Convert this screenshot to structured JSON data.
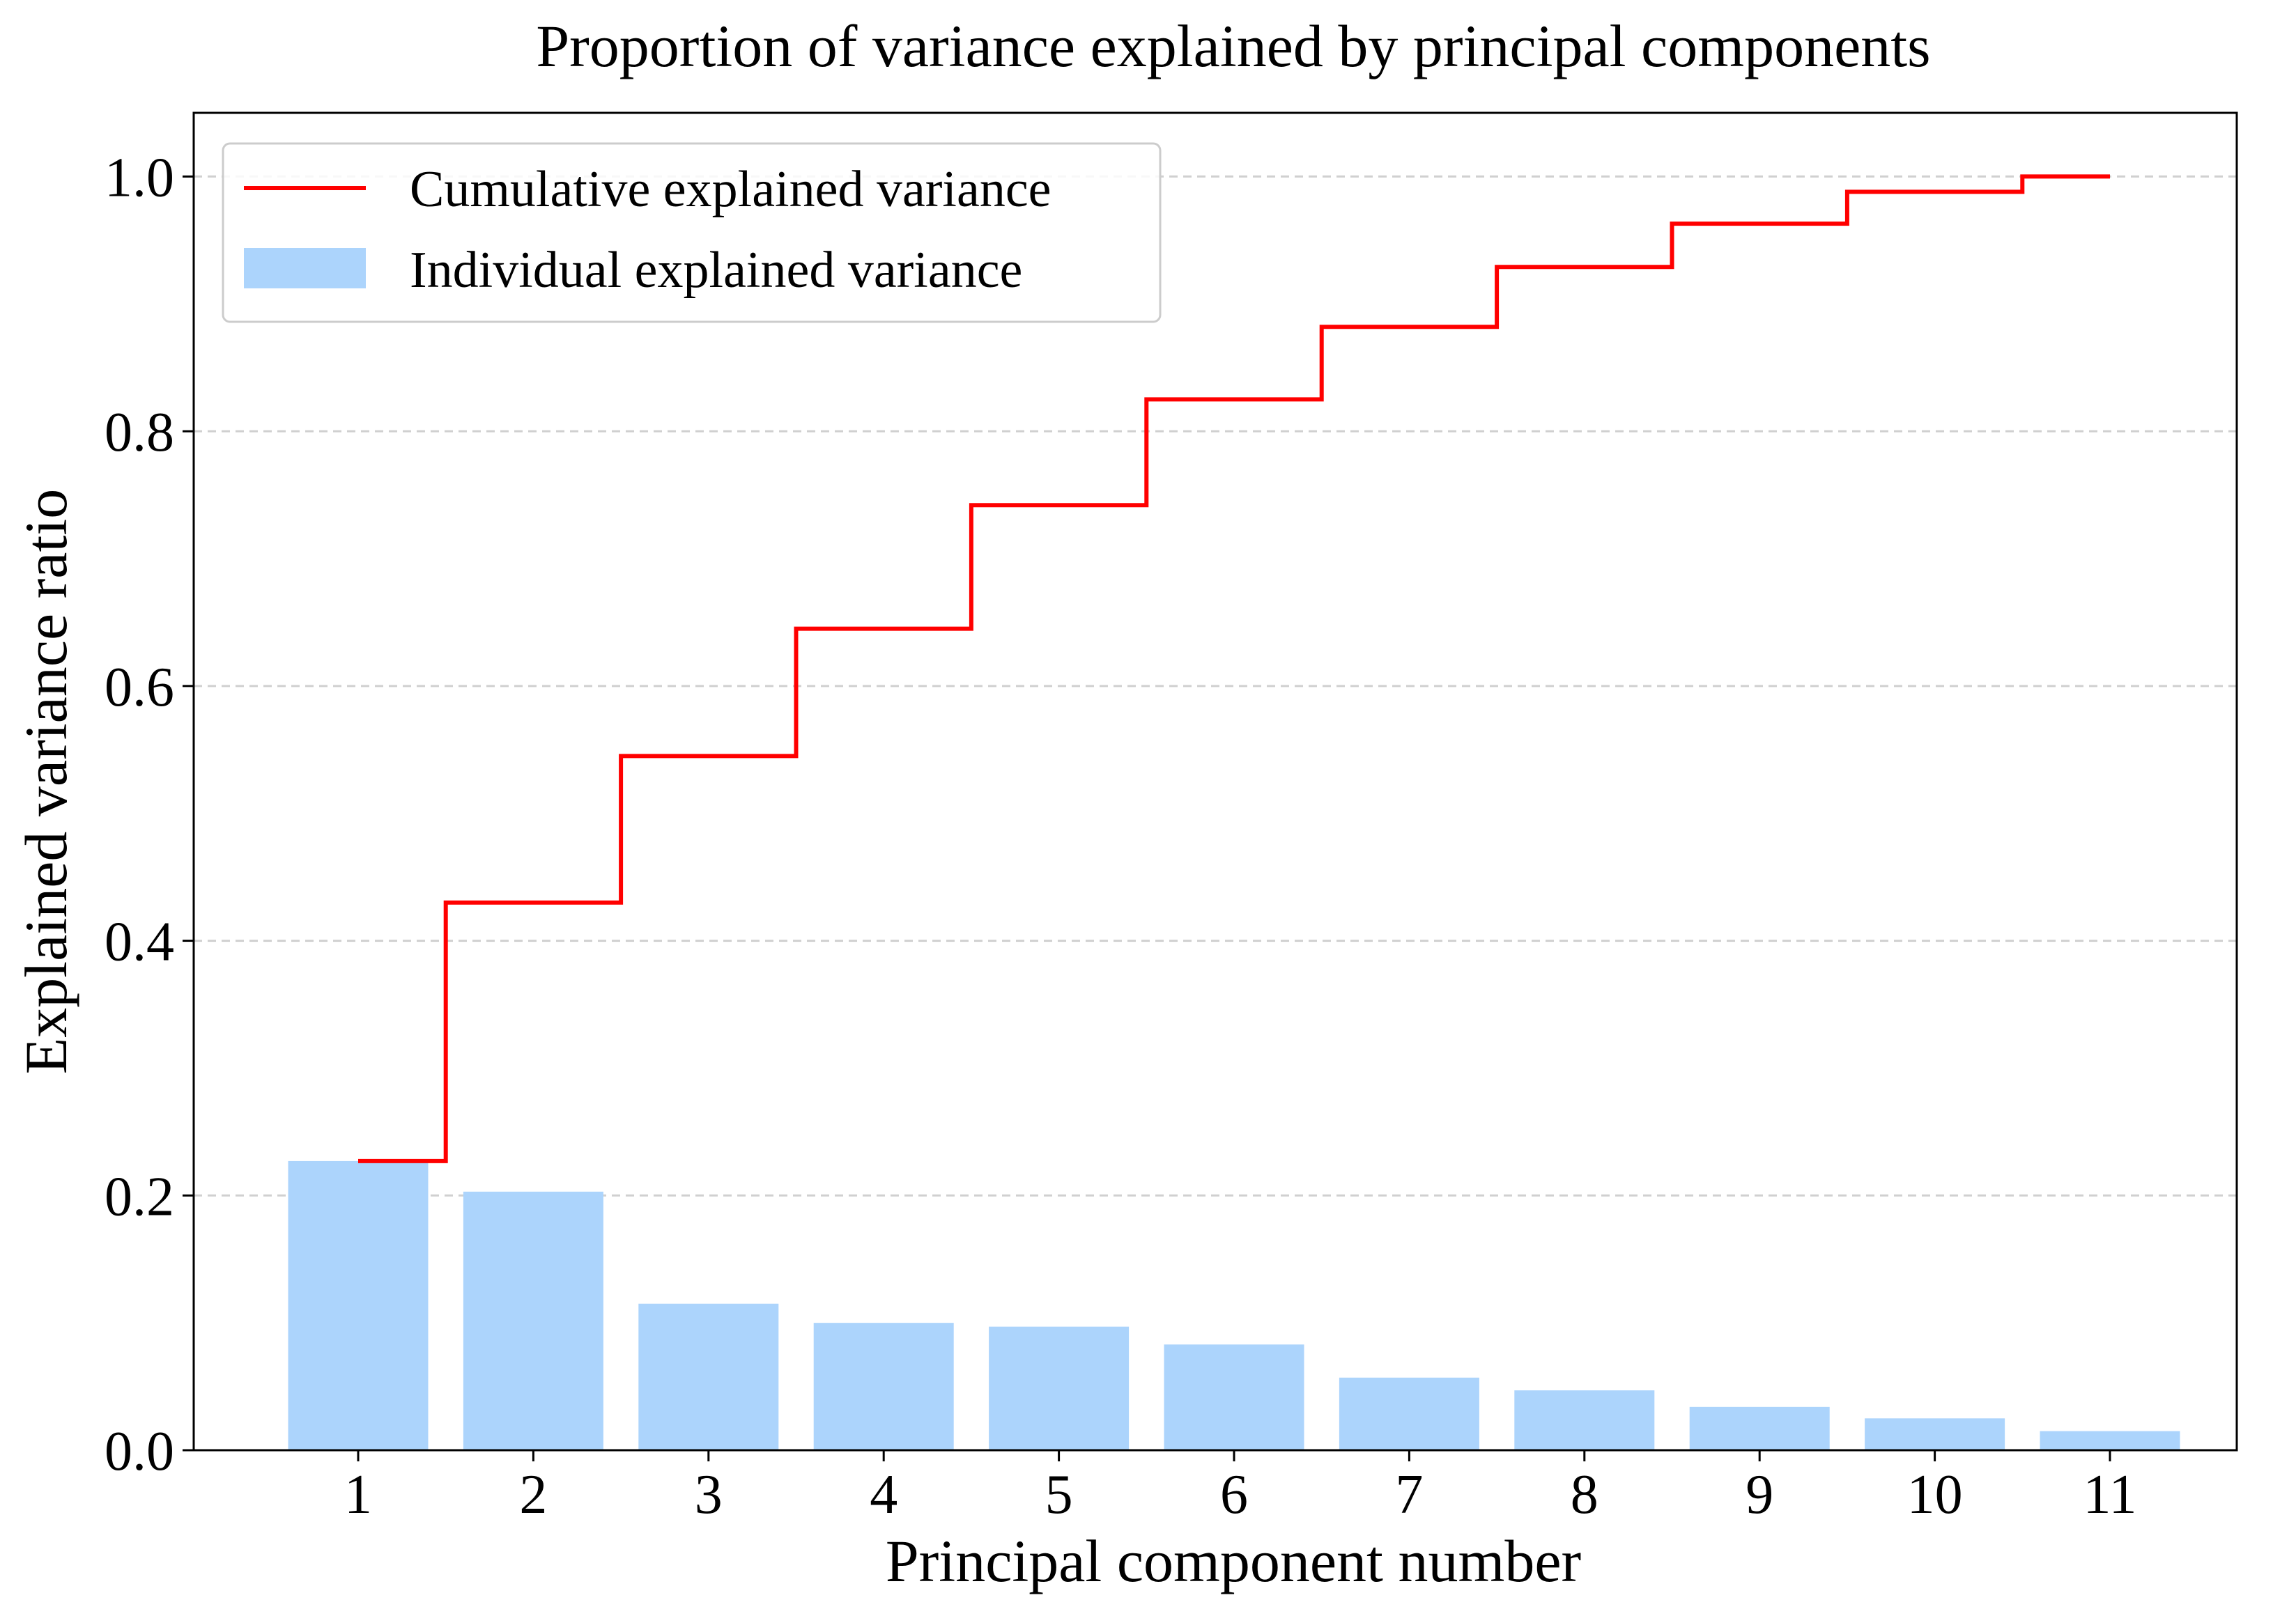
{
  "chart_data": {
    "type": "bar",
    "title": "Proportion of variance explained by principal components",
    "xlabel": "Principal component number",
    "ylabel": "Explained variance ratio",
    "categories": [
      "1",
      "2",
      "3",
      "4",
      "5",
      "6",
      "7",
      "8",
      "9",
      "10",
      "11"
    ],
    "ylim": [
      0.0,
      1.05
    ],
    "yticks": [
      0.0,
      0.2,
      0.4,
      0.6,
      0.8,
      1.0
    ],
    "ytick_labels": [
      "0.0",
      "0.2",
      "0.4",
      "0.6",
      "0.8",
      "1.0"
    ],
    "grid": "horizontal dashed",
    "legend_position": "top-left",
    "series": [
      {
        "name": "Individual explained variance",
        "kind": "bar",
        "color": "#acd4fc",
        "values": [
          0.227,
          0.203,
          0.115,
          0.1,
          0.097,
          0.083,
          0.057,
          0.047,
          0.034,
          0.025,
          0.015
        ]
      },
      {
        "name": "Cumulative explained variance",
        "kind": "step",
        "color": "#ff0000",
        "values": [
          0.227,
          0.43,
          0.545,
          0.645,
          0.742,
          0.825,
          0.882,
          0.929,
          0.963,
          0.988,
          1.0
        ]
      }
    ]
  }
}
